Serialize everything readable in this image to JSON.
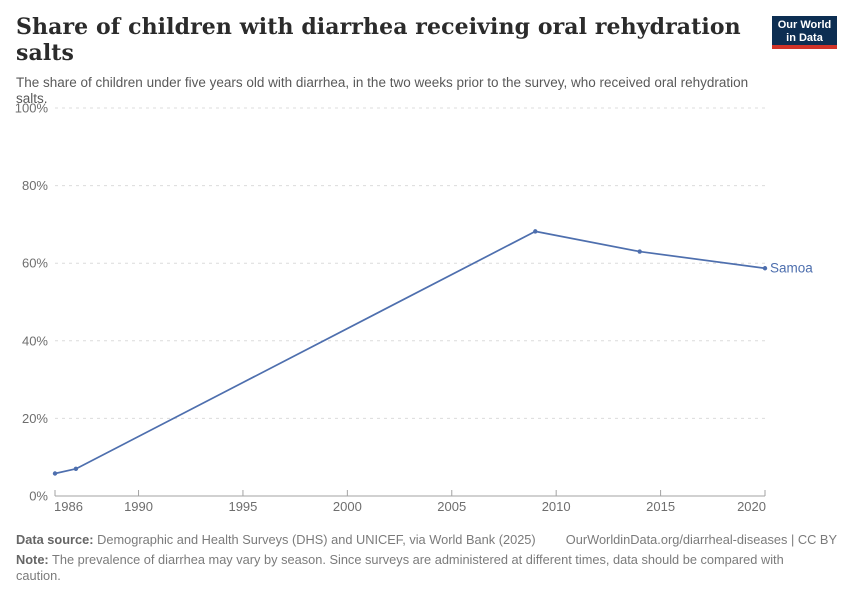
{
  "header": {
    "title": "Share of children with diarrhea receiving oral rehydration salts",
    "subtitle": "The share of children under five years old with diarrhea, in the two weeks prior to the survey, who received oral rehydration salts.",
    "logo": {
      "line1": "Our World",
      "line2": "in Data",
      "bg_color": "#0d2e52",
      "stripe_color": "#d13328"
    }
  },
  "chart_data": {
    "type": "line",
    "title": "Share of children with diarrhea receiving oral rehydration salts",
    "xlabel": "",
    "ylabel": "",
    "xlim": [
      1986,
      2020
    ],
    "ylim": [
      0,
      100
    ],
    "x_ticks": [
      1986,
      1990,
      1995,
      2000,
      2005,
      2010,
      2015,
      2020
    ],
    "y_ticks": [
      0,
      20,
      40,
      60,
      80,
      100
    ],
    "y_tick_suffix": "%",
    "grid": "horizontal-dashed",
    "series": [
      {
        "name": "Samoa",
        "color": "#4e6fae",
        "points": [
          {
            "x": 1986,
            "y": 5.8
          },
          {
            "x": 1987,
            "y": 7
          },
          {
            "x": 2009,
            "y": 68.2
          },
          {
            "x": 2014,
            "y": 63
          },
          {
            "x": 2020,
            "y": 58.7
          }
        ]
      }
    ]
  },
  "footer": {
    "datasource_label": "Data source:",
    "datasource_text": "Demographic and Health Surveys (DHS) and UNICEF, via World Bank (2025)",
    "license_text": "OurWorldinData.org/diarrheal-diseases | CC BY",
    "note_label": "Note:",
    "note_text": "The prevalence of diarrhea may vary by season. Since surveys are administered at different times, data should be compared with caution."
  }
}
